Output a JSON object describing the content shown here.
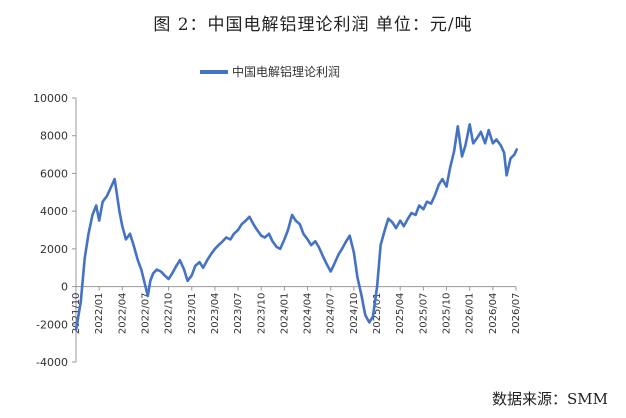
{
  "header": {
    "title": "图 2：中国电解铝理论利润   单位：元/吨",
    "source": "数据来源：SMM"
  },
  "chart_data": {
    "type": "line",
    "title": "图 2：中国电解铝理论利润",
    "unit": "元/吨",
    "legend": {
      "entries": [
        "中国电解铝理论利润"
      ],
      "position": "top-left"
    },
    "series_color": "#4472C4",
    "ylim": [
      -4000,
      10000
    ],
    "yticks": [
      -4000,
      -2000,
      0,
      2000,
      4000,
      6000,
      8000,
      10000
    ],
    "xlim": [
      "2021-10",
      "2026-07"
    ],
    "xticks": [
      "2021/10",
      "2022/01",
      "2022/04",
      "2022/07",
      "2022/10",
      "2023/01",
      "2023/04",
      "2023/07",
      "2023/10",
      "2024/01",
      "2024/04",
      "2024/07",
      "2024/10",
      "2025/01",
      "2025/04",
      "2025/07",
      "2025/10",
      "2026/01",
      "2026/04",
      "2026/07"
    ],
    "grid": false,
    "series": [
      {
        "name": "中国电解铝理论利润",
        "points": [
          [
            "2021-10-01",
            -2300
          ],
          [
            "2021-10-20",
            -800
          ],
          [
            "2021-11-05",
            1500
          ],
          [
            "2021-11-20",
            2800
          ],
          [
            "2021-12-05",
            3800
          ],
          [
            "2021-12-20",
            4300
          ],
          [
            "2022-01-01",
            3500
          ],
          [
            "2022-01-15",
            4500
          ],
          [
            "2022-02-01",
            4800
          ],
          [
            "2022-02-15",
            5200
          ],
          [
            "2022-03-01",
            5700
          ],
          [
            "2022-03-10",
            4900
          ],
          [
            "2022-03-20",
            4000
          ],
          [
            "2022-04-01",
            3200
          ],
          [
            "2022-04-15",
            2500
          ],
          [
            "2022-05-01",
            2800
          ],
          [
            "2022-05-15",
            2200
          ],
          [
            "2022-06-01",
            1400
          ],
          [
            "2022-06-15",
            900
          ],
          [
            "2022-07-01",
            0
          ],
          [
            "2022-07-10",
            -500
          ],
          [
            "2022-07-20",
            300
          ],
          [
            "2022-08-01",
            700
          ],
          [
            "2022-08-15",
            900
          ],
          [
            "2022-09-01",
            800
          ],
          [
            "2022-09-15",
            600
          ],
          [
            "2022-10-01",
            400
          ],
          [
            "2022-10-15",
            700
          ],
          [
            "2022-11-01",
            1100
          ],
          [
            "2022-11-15",
            1400
          ],
          [
            "2022-12-01",
            900
          ],
          [
            "2022-12-15",
            300
          ],
          [
            "2023-01-01",
            600
          ],
          [
            "2023-01-15",
            1100
          ],
          [
            "2023-02-01",
            1300
          ],
          [
            "2023-02-15",
            1000
          ],
          [
            "2023-03-01",
            1400
          ],
          [
            "2023-03-15",
            1700
          ],
          [
            "2023-04-01",
            2000
          ],
          [
            "2023-04-15",
            2200
          ],
          [
            "2023-05-01",
            2400
          ],
          [
            "2023-05-15",
            2600
          ],
          [
            "2023-06-01",
            2500
          ],
          [
            "2023-06-15",
            2800
          ],
          [
            "2023-07-01",
            3000
          ],
          [
            "2023-07-15",
            3300
          ],
          [
            "2023-08-01",
            3500
          ],
          [
            "2023-08-15",
            3700
          ],
          [
            "2023-09-01",
            3300
          ],
          [
            "2023-09-15",
            3000
          ],
          [
            "2023-10-01",
            2700
          ],
          [
            "2023-10-15",
            2600
          ],
          [
            "2023-11-01",
            2800
          ],
          [
            "2023-11-15",
            2400
          ],
          [
            "2023-12-01",
            2100
          ],
          [
            "2023-12-15",
            2000
          ],
          [
            "2024-01-01",
            2500
          ],
          [
            "2024-01-15",
            3000
          ],
          [
            "2024-02-01",
            3800
          ],
          [
            "2024-02-15",
            3500
          ],
          [
            "2024-03-01",
            3300
          ],
          [
            "2024-03-15",
            2800
          ],
          [
            "2024-04-01",
            2500
          ],
          [
            "2024-04-15",
            2200
          ],
          [
            "2024-05-01",
            2400
          ],
          [
            "2024-05-15",
            2100
          ],
          [
            "2024-06-01",
            1600
          ],
          [
            "2024-06-15",
            1200
          ],
          [
            "2024-07-01",
            800
          ],
          [
            "2024-07-15",
            1200
          ],
          [
            "2024-08-01",
            1700
          ],
          [
            "2024-08-15",
            2000
          ],
          [
            "2024-09-01",
            2400
          ],
          [
            "2024-09-15",
            2700
          ],
          [
            "2024-10-01",
            1800
          ],
          [
            "2024-10-15",
            500
          ],
          [
            "2024-11-01",
            -500
          ],
          [
            "2024-11-15",
            -1500
          ],
          [
            "2024-12-01",
            -1900
          ],
          [
            "2024-12-15",
            -1600
          ],
          [
            "2025-01-01",
            0
          ],
          [
            "2025-01-15",
            2200
          ],
          [
            "2025-02-01",
            3000
          ],
          [
            "2025-02-15",
            3600
          ],
          [
            "2025-03-01",
            3400
          ],
          [
            "2025-03-15",
            3100
          ],
          [
            "2025-04-01",
            3500
          ],
          [
            "2025-04-15",
            3200
          ],
          [
            "2025-05-01",
            3600
          ],
          [
            "2025-05-15",
            3900
          ],
          [
            "2025-06-01",
            3800
          ],
          [
            "2025-06-15",
            4300
          ],
          [
            "2025-07-01",
            4100
          ],
          [
            "2025-07-15",
            4500
          ],
          [
            "2025-08-01",
            4400
          ],
          [
            "2025-08-15",
            4800
          ],
          [
            "2025-09-01",
            5400
          ],
          [
            "2025-09-15",
            5700
          ],
          [
            "2025-10-01",
            5300
          ],
          [
            "2025-10-15",
            6300
          ],
          [
            "2025-11-01",
            7200
          ],
          [
            "2025-11-15",
            8500
          ],
          [
            "2025-12-01",
            6900
          ],
          [
            "2025-12-15",
            7500
          ],
          [
            "2026-01-01",
            8600
          ],
          [
            "2026-01-15",
            7600
          ],
          [
            "2026-02-01",
            7900
          ],
          [
            "2026-02-15",
            8200
          ],
          [
            "2026-03-01",
            7600
          ],
          [
            "2026-03-15",
            8300
          ],
          [
            "2026-04-01",
            7600
          ],
          [
            "2026-04-15",
            7800
          ],
          [
            "2026-05-01",
            7500
          ],
          [
            "2026-05-15",
            7100
          ],
          [
            "2026-05-25",
            5900
          ],
          [
            "2026-06-10",
            6800
          ],
          [
            "2026-06-25",
            7000
          ],
          [
            "2026-07-05",
            7300
          ]
        ]
      }
    ]
  }
}
